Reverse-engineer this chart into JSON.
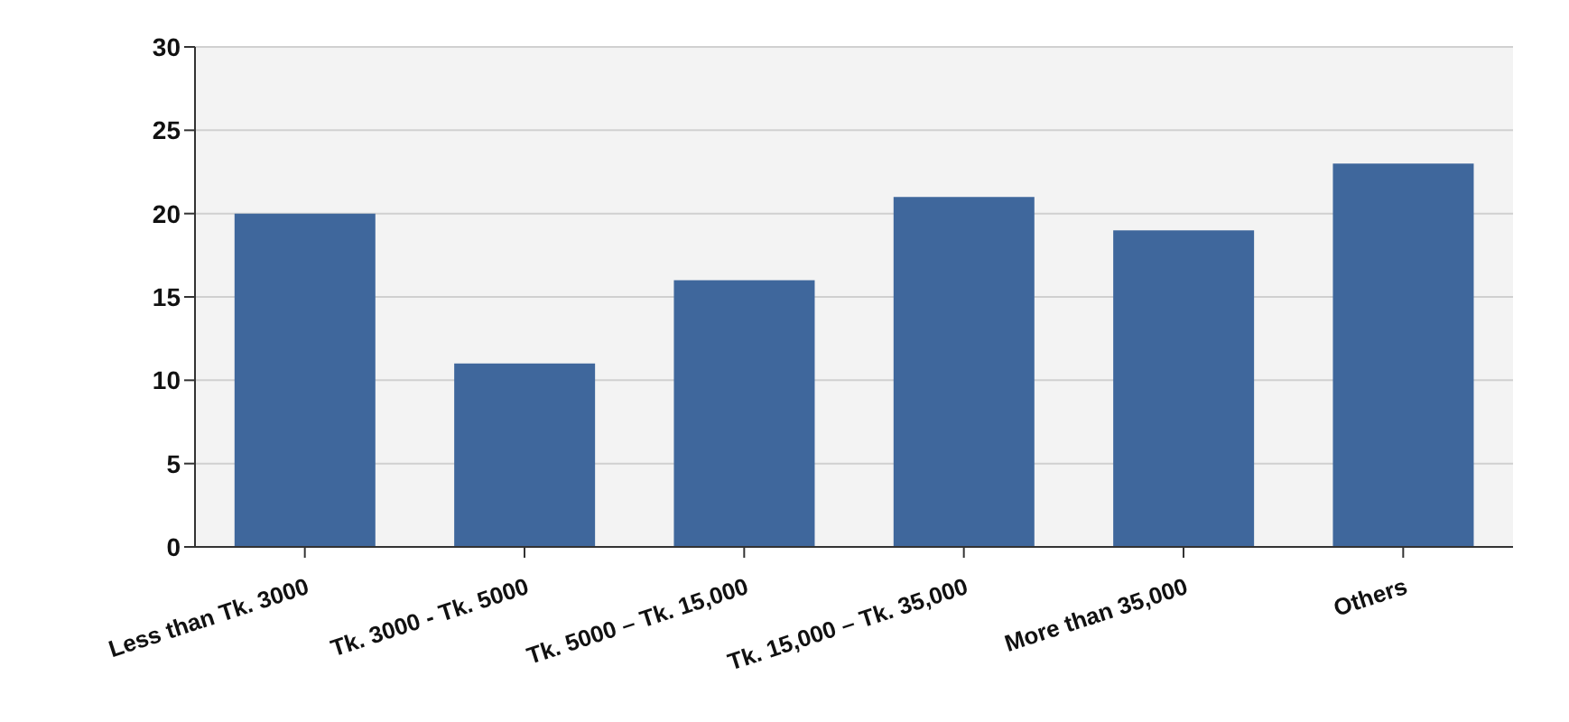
{
  "chart_data": {
    "type": "bar",
    "categories": [
      "Less than Tk. 3000",
      "Tk. 3000 - Tk. 5000",
      "Tk. 5000 – Tk. 15,000",
      "Tk. 15,000 – Tk. 35,000",
      "More than 35,000",
      "Others"
    ],
    "values": [
      20,
      11,
      16,
      21,
      19,
      23
    ],
    "color": "#3f679c",
    "ylim": [
      0,
      30
    ],
    "yticks": [
      0,
      5,
      10,
      15,
      20,
      25,
      30
    ],
    "grid": "y"
  }
}
